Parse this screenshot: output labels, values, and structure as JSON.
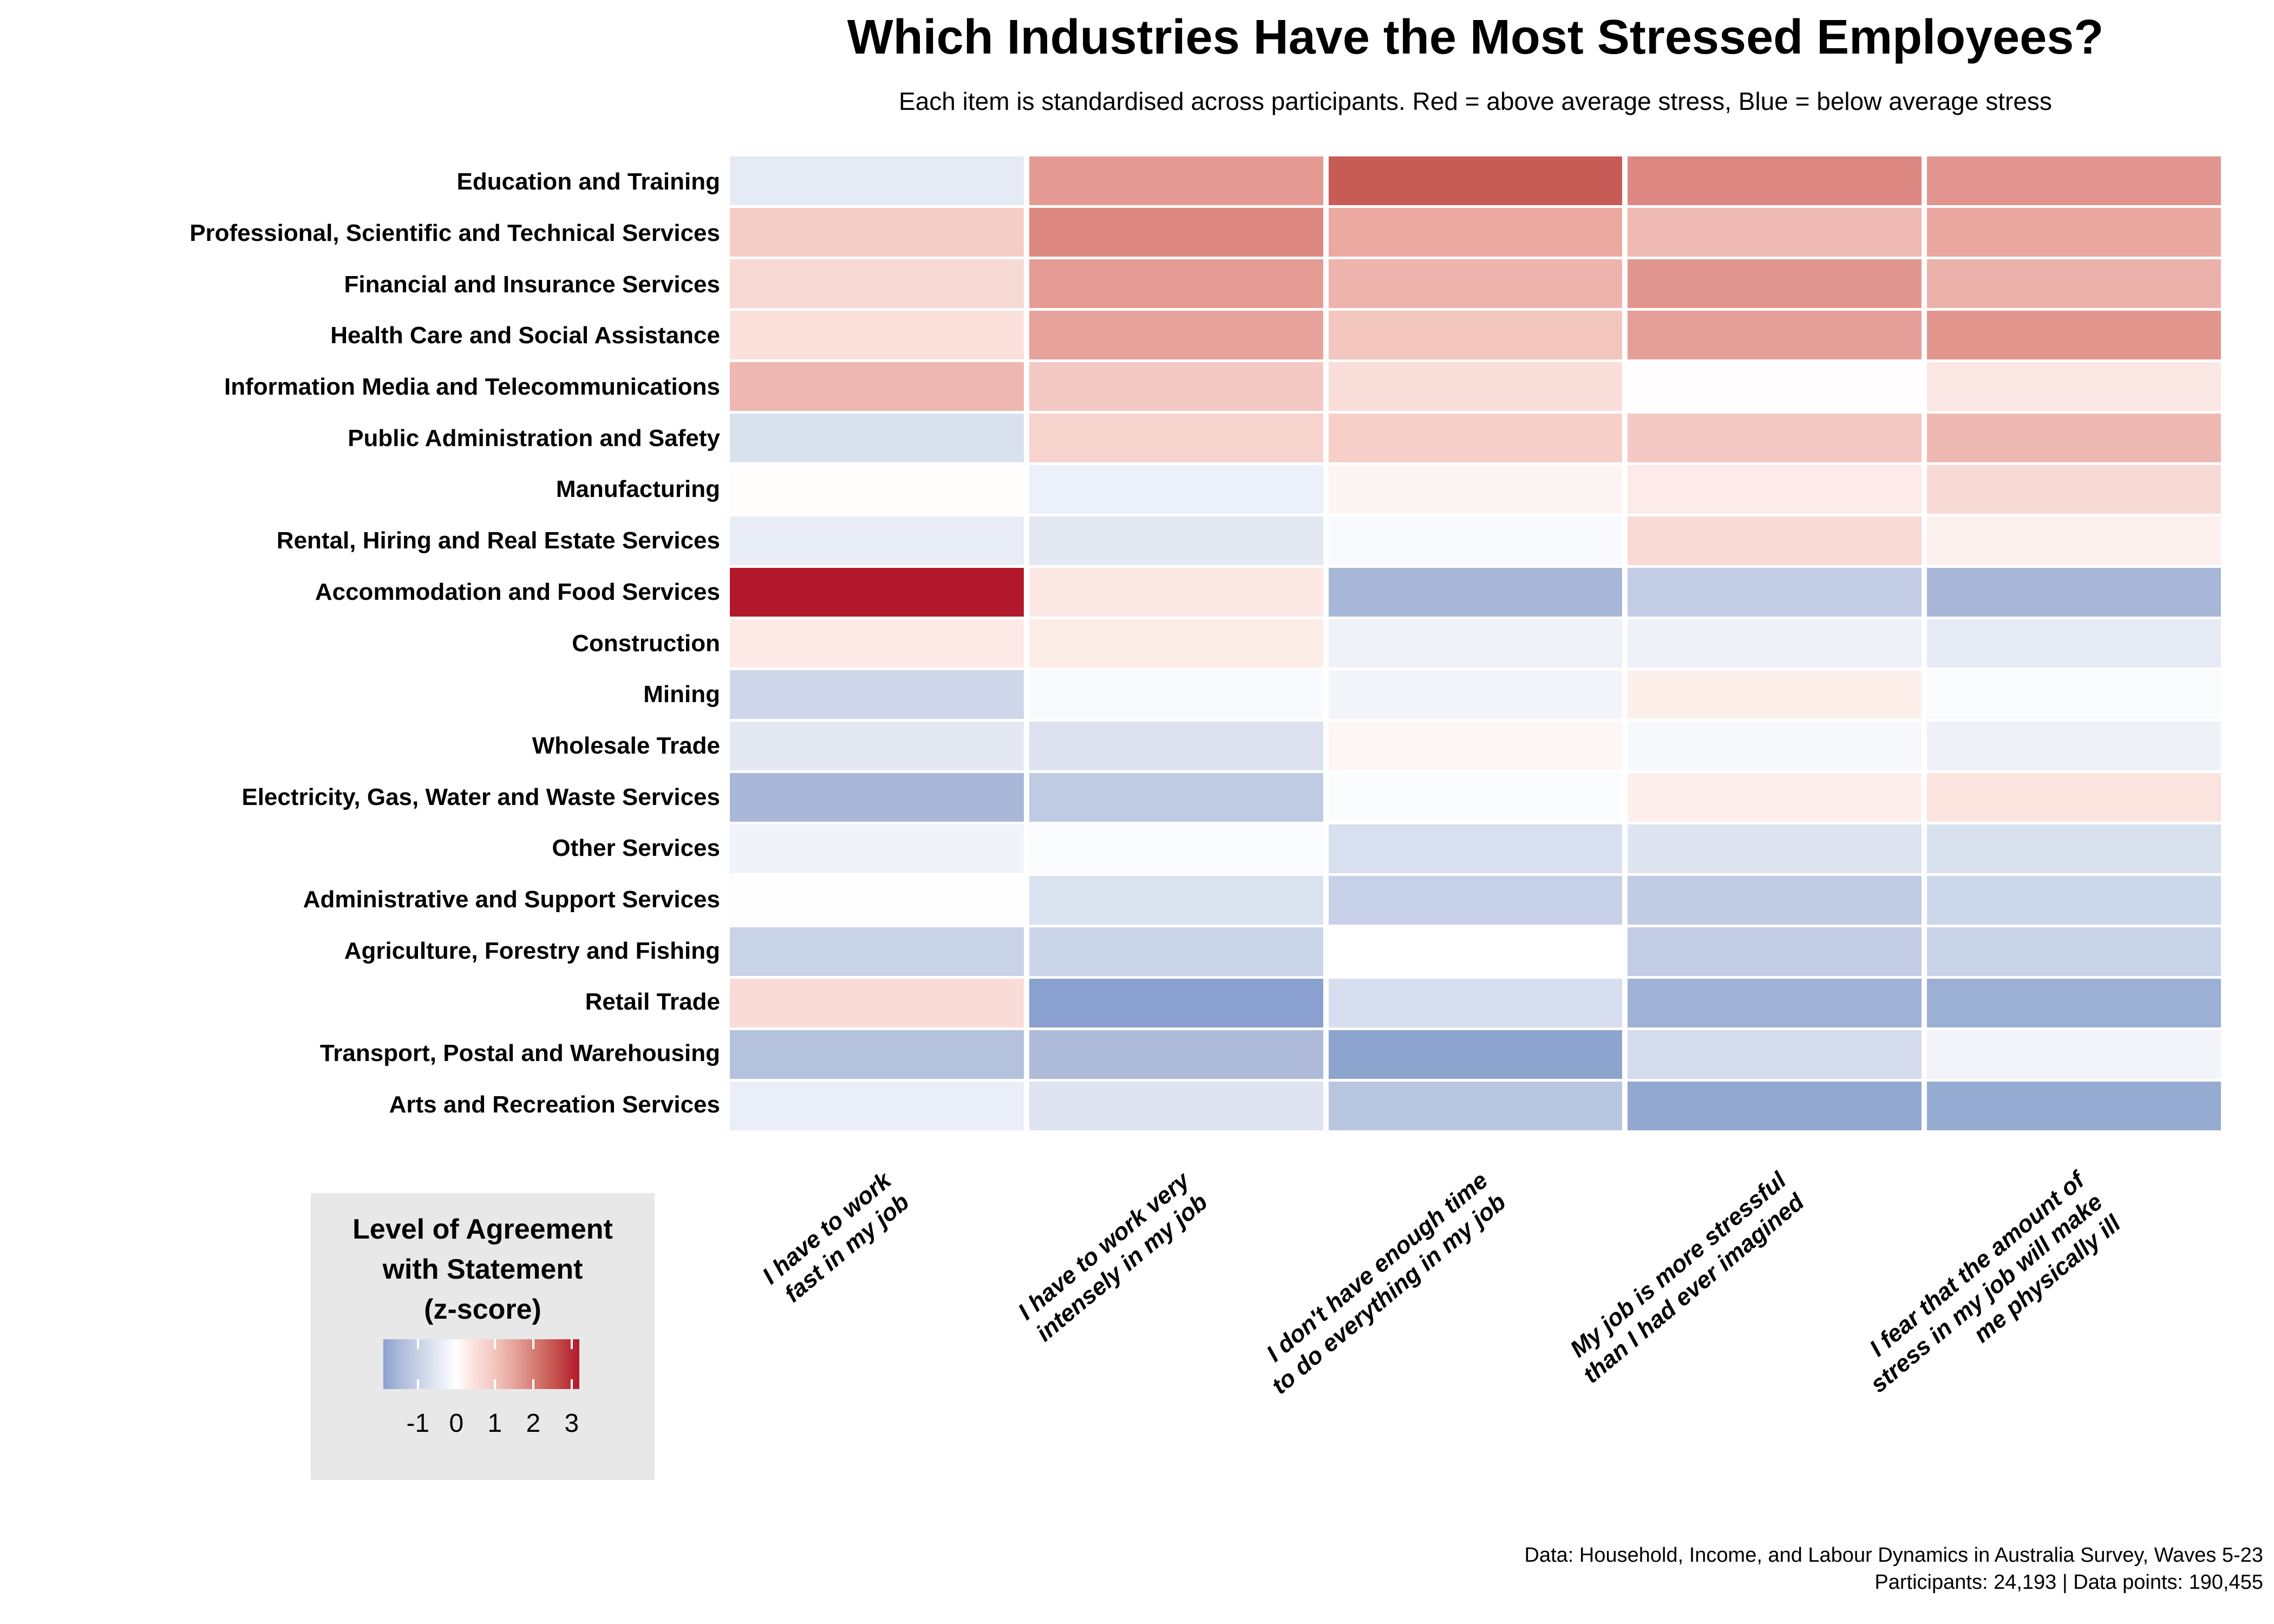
{
  "title": "Which Industries Have the Most Stressed Employees?",
  "subtitle": "Each item is standardised across participants. Red = above average stress, Blue = below average stress",
  "footer": {
    "line1": "Data: Household, Income, and Labour Dynamics in Australia Survey, Waves 5-23",
    "line2": "Participants: 24,193 | Data points: 190,455"
  },
  "legend": {
    "background": "#e8e8e8",
    "title": "Level of Agreement\nwith Statement\n(z-score)",
    "tick_labels": [
      "-1",
      "0",
      "1",
      "2",
      "3"
    ],
    "tick_values": [
      -1,
      0,
      1,
      2,
      3
    ]
  },
  "chart_data": {
    "type": "heatmap",
    "title": "Which Industries Have the Most Stressed Employees?",
    "subtitle": "Each item is standardised across participants. Red = above average stress, Blue = below average stress",
    "xlabel": "",
    "ylabel": "",
    "x_categories": [
      "I have to work\nfast in my job",
      "I have to work very\nintensely in my job",
      "I don't have enough time\nto do everything in my job",
      "My job is more stressful\nthan I had ever imagined",
      "I fear that the amount of\nstress in my job will make\nme physically ill"
    ],
    "y_categories": [
      "Education and Training",
      "Professional, Scientific and Technical Services",
      "Financial and Insurance Services",
      "Health Care and Social Assistance",
      "Information Media and Telecommunications",
      "Public Administration and Safety",
      "Manufacturing",
      "Rental, Hiring and Real Estate Services",
      "Accommodation and Food Services",
      "Construction",
      "Mining",
      "Wholesale Trade",
      "Electricity, Gas, Water and Waste Services",
      "Other Services",
      "Administrative and Support Services",
      "Agriculture, Forestry and Fishing",
      "Retail Trade",
      "Transport, Postal and Warehousing",
      "Arts and Recreation Services"
    ],
    "z_values": [
      [
        -0.4,
        1.5,
        2.5,
        1.8,
        1.5
      ],
      [
        0.7,
        1.8,
        1.3,
        1.0,
        1.3
      ],
      [
        0.6,
        1.5,
        1.1,
        1.5,
        1.2
      ],
      [
        0.5,
        1.4,
        0.9,
        1.4,
        1.5
      ],
      [
        1.1,
        0.8,
        0.5,
        0.0,
        0.4
      ],
      [
        -0.6,
        0.7,
        0.7,
        0.8,
        1.0
      ],
      [
        0.1,
        -0.3,
        0.2,
        0.3,
        0.6
      ],
      [
        -0.4,
        -0.5,
        -0.1,
        0.6,
        0.2
      ],
      [
        3.2,
        0.4,
        -1.5,
        -1.0,
        -1.5
      ],
      [
        0.3,
        0.3,
        -0.3,
        -0.3,
        -0.5
      ],
      [
        -0.9,
        -0.1,
        -0.2,
        0.3,
        -0.1
      ],
      [
        -0.5,
        -0.6,
        0.2,
        -0.1,
        -0.3
      ],
      [
        -1.5,
        -1.1,
        -0.1,
        0.3,
        0.5
      ],
      [
        -0.3,
        -0.1,
        -0.7,
        -0.6,
        -0.7
      ],
      [
        0.0,
        -0.6,
        -1.0,
        -1.1,
        -0.9
      ],
      [
        -1.0,
        -0.9,
        0.0,
        -1.1,
        -1.0
      ],
      [
        0.6,
        -1.9,
        -0.7,
        -1.6,
        -1.7
      ],
      [
        -1.3,
        -1.4,
        -1.8,
        -0.7,
        -0.2
      ],
      [
        -0.4,
        -0.6,
        -1.2,
        -1.7,
        -1.6
      ]
    ],
    "cell_colors": [
      [
        "#e6eaf4",
        "#e49a92",
        "#c75b55",
        "#dc8781",
        "#e1958e"
      ],
      [
        "#f5cdc7",
        "#dd8781",
        "#eba9a2",
        "#f0bab4",
        "#eaa8a1"
      ],
      [
        "#f7d9d4",
        "#e49b94",
        "#eeb3ad",
        "#e19790",
        "#eab1aa"
      ],
      [
        "#fbe0dc",
        "#e6a29b",
        "#f3c5bf",
        "#e69f98",
        "#e2958d"
      ],
      [
        "#efb7b1",
        "#f4c9c3",
        "#f9ded9",
        "#fffdfd",
        "#fbe7e4"
      ],
      [
        "#d9e1ef",
        "#f7d3cd",
        "#f6cfc9",
        "#f4c8c2",
        "#efb9b3"
      ],
      [
        "#fffcfc",
        "#ecf0f8",
        "#fdf5f4",
        "#fcebe8",
        "#f8dad5"
      ],
      [
        "#e9edf5",
        "#e3e9f3",
        "#f9fafd",
        "#f9dad5",
        "#fdf1ef"
      ],
      [
        "#b2182b",
        "#fbe8e4",
        "#a9b8d8",
        "#c3cee6",
        "#a8b7d7"
      ],
      [
        "#fdeae7",
        "#fcece8",
        "#eff2f8",
        "#eef1f8",
        "#e5eaf4"
      ],
      [
        "#ced8ea",
        "#f9fafd",
        "#f3f5fa",
        "#fdf0ea",
        "#fafbfd"
      ],
      [
        "#e3e8f2",
        "#dbe1ef",
        "#fdf6f5",
        "#f6f8fc",
        "#eef1f8"
      ],
      [
        "#a9b8d8",
        "#c0cce4",
        "#fbfcfd",
        "#fdf0ec",
        "#fbe3de"
      ],
      [
        "#f0f3f9",
        "#fafbfe",
        "#d8dfee",
        "#dee5f1",
        "#d9e1ee"
      ],
      [
        "#fefefe",
        "#dce3f0",
        "#c6d0e7",
        "#c0cbe4",
        "#cdd7ea"
      ],
      [
        "#c9d3e8",
        "#ccd6ea",
        "#ffffff",
        "#c2cde5",
        "#c9d3e8"
      ],
      [
        "#f9dcd7",
        "#8aa0ce",
        "#d7def0",
        "#9fb2d6",
        "#9cafd4"
      ],
      [
        "#b4c2dd",
        "#aebcda",
        "#8da4ce",
        "#d4dbec",
        "#f2f4f9"
      ],
      [
        "#eaeef6",
        "#dee4f1",
        "#b9c6e0",
        "#92a8d0",
        "#96abd1"
      ]
    ],
    "colorbar": {
      "title": "Level of Agreement\nwith Statement\n(z-score)",
      "range": [
        -1.9,
        3.2
      ],
      "ticks": [
        -1,
        0,
        1,
        2,
        3
      ],
      "gradient_stops": [
        {
          "z": -1.9,
          "color": "#8aa0ce"
        },
        {
          "z": -1.5,
          "color": "#a9b9d9"
        },
        {
          "z": -1.0,
          "color": "#c6d1e6"
        },
        {
          "z": -0.5,
          "color": "#e3e8f3"
        },
        {
          "z": 0.0,
          "color": "#ffffff"
        },
        {
          "z": 0.5,
          "color": "#fadeda"
        },
        {
          "z": 1.0,
          "color": "#f2c6be"
        },
        {
          "z": 1.5,
          "color": "#e5a49c"
        },
        {
          "z": 2.0,
          "color": "#d77f77"
        },
        {
          "z": 2.5,
          "color": "#c65852"
        },
        {
          "z": 3.2,
          "color": "#b2182b"
        }
      ],
      "colors": {
        "low": "#8aa0ce",
        "mid": "#ffffff",
        "high": "#b2182b"
      }
    },
    "legend_position": "bottom-left",
    "grid": false
  }
}
